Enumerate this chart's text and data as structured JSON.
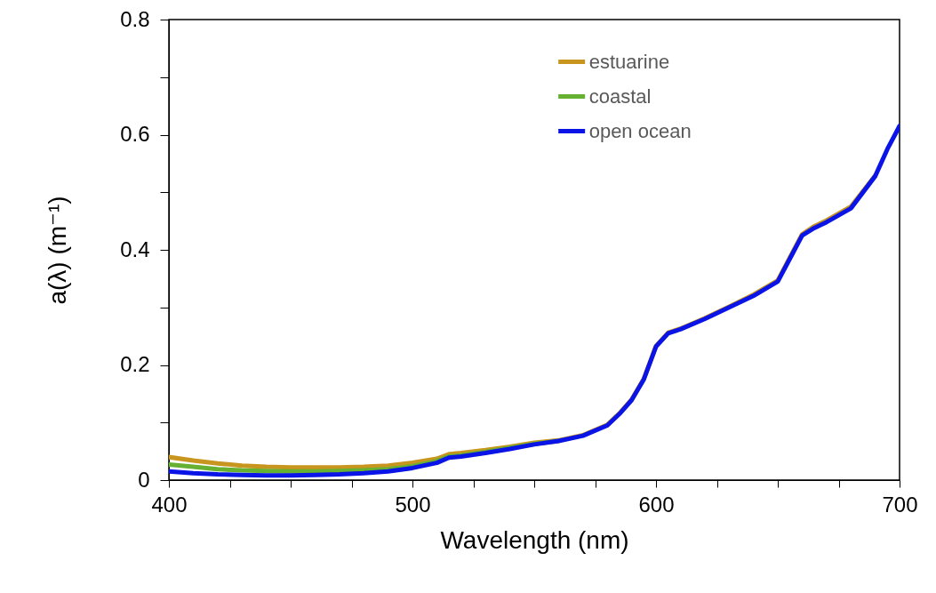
{
  "chart_data": {
    "type": "line",
    "xlabel": "Wavelength (nm)",
    "ylabel": "a(λ)  (m⁻¹)",
    "x": [
      400,
      410,
      420,
      430,
      440,
      450,
      460,
      470,
      480,
      490,
      500,
      510,
      515,
      520,
      530,
      540,
      550,
      560,
      570,
      580,
      585,
      590,
      595,
      600,
      605,
      610,
      620,
      630,
      640,
      650,
      655,
      660,
      665,
      670,
      680,
      690,
      695,
      700
    ],
    "series": [
      {
        "name": "estuarine",
        "color": "#c8961e",
        "values": [
          0.04,
          0.034,
          0.029,
          0.025,
          0.023,
          0.022,
          0.022,
          0.022,
          0.023,
          0.025,
          0.03,
          0.037,
          0.045,
          0.047,
          0.052,
          0.058,
          0.065,
          0.069,
          0.078,
          0.096,
          0.116,
          0.14,
          0.176,
          0.233,
          0.256,
          0.263,
          0.281,
          0.301,
          0.322,
          0.347,
          0.387,
          0.427,
          0.441,
          0.451,
          0.475,
          0.529,
          null,
          null
        ]
      },
      {
        "name": "coastal",
        "color": "#66b032",
        "values": [
          0.027,
          0.023,
          0.019,
          0.017,
          0.016,
          0.015,
          0.015,
          0.016,
          0.017,
          0.019,
          0.024,
          0.033,
          0.041,
          0.043,
          0.049,
          0.056,
          0.063,
          0.068,
          null,
          null,
          null,
          null,
          null,
          null,
          null,
          null,
          null,
          null,
          null,
          null,
          null,
          null,
          null,
          null,
          null,
          null,
          null,
          null
        ]
      },
      {
        "name": "open ocean",
        "color": "#0a14e6",
        "values": [
          0.015,
          0.012,
          0.01,
          0.009,
          0.008,
          0.008,
          0.009,
          0.01,
          0.012,
          0.015,
          0.021,
          0.03,
          0.039,
          0.041,
          0.047,
          0.054,
          0.062,
          0.068,
          0.077,
          0.095,
          0.115,
          0.139,
          0.175,
          0.232,
          0.255,
          0.262,
          0.28,
          0.3,
          0.32,
          0.345,
          0.385,
          0.425,
          0.438,
          0.448,
          0.472,
          0.528,
          0.575,
          0.615
        ]
      }
    ],
    "xlim": [
      400,
      700
    ],
    "ylim": [
      0,
      0.8
    ],
    "xticks": [
      400,
      {
        "value": 425,
        "label": null
      },
      {
        "value": 450,
        "label": null
      },
      {
        "value": 475,
        "label": null
      },
      500,
      {
        "value": 525,
        "label": null
      },
      {
        "value": 550,
        "label": null
      },
      {
        "value": 575,
        "label": null
      },
      600,
      {
        "value": 625,
        "label": null
      },
      {
        "value": 650,
        "label": null
      },
      {
        "value": 675,
        "label": null
      },
      700
    ],
    "yticks": [
      0,
      {
        "value": 0.1,
        "label": null
      },
      0.2,
      {
        "value": 0.3,
        "label": null
      },
      0.4,
      {
        "value": 0.5,
        "label": null
      },
      0.6,
      {
        "value": 0.7,
        "label": null
      },
      0.8
    ],
    "grid": false,
    "legend": "top right",
    "line_style": "solid",
    "marker": "none"
  }
}
